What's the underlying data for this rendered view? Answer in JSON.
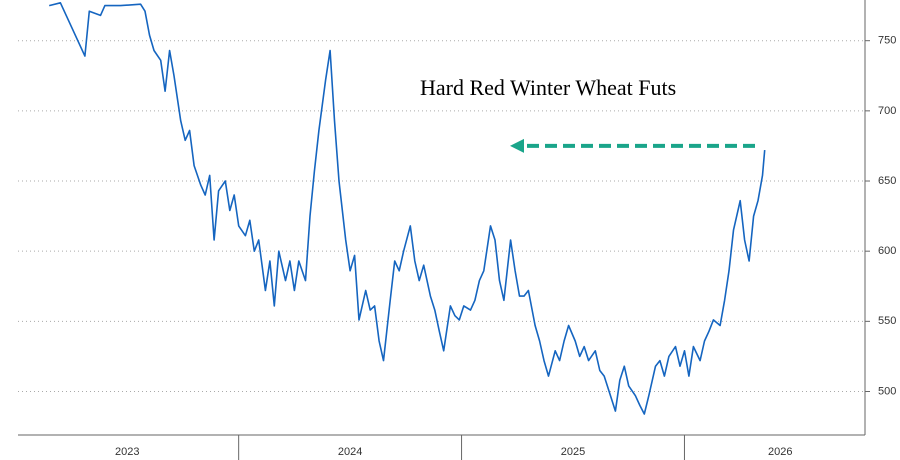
{
  "chart_data": {
    "type": "line",
    "annotation": "Hard Red Winter Wheat Futs",
    "arrow_level": 675,
    "arrow_color": "#1aa58a",
    "xlim": [
      2023.01,
      2026.81
    ],
    "ylim": [
      469,
      779
    ],
    "yticks": [
      500,
      550,
      600,
      650,
      700,
      750
    ],
    "xticks": [
      {
        "value": 2023.5,
        "label": "2023"
      },
      {
        "value": 2024.5,
        "label": "2024"
      },
      {
        "value": 2025.5,
        "label": "2025"
      },
      {
        "value": 2026.43,
        "label": "2026"
      }
    ],
    "year_boundaries": [
      2024,
      2025,
      2026
    ],
    "grid": true,
    "series": [
      {
        "color": "#1565c0",
        "x": [
          2023.15,
          2023.2,
          2023.31,
          2023.33,
          2023.38,
          2023.4,
          2023.47,
          2023.56,
          2023.58,
          2023.6,
          2023.62,
          2023.65,
          2023.67,
          2023.69,
          2023.71,
          2023.74,
          2023.76,
          2023.78,
          2023.8,
          2023.83,
          2023.85,
          2023.87,
          2023.89,
          2023.91,
          2023.94,
          2023.96,
          2023.98,
          2024.0,
          2024.03,
          2024.05,
          2024.07,
          2024.09,
          2024.12,
          2024.14,
          2024.16,
          2024.18,
          2024.21,
          2024.23,
          2024.25,
          2024.27,
          2024.3,
          2024.32,
          2024.34,
          2024.36,
          2024.39,
          2024.41,
          2024.43,
          2024.45,
          2024.48,
          2024.5,
          2024.52,
          2024.54,
          2024.57,
          2024.59,
          2024.61,
          2024.63,
          2024.65,
          2024.68,
          2024.7,
          2024.72,
          2024.74,
          2024.77,
          2024.79,
          2024.81,
          2024.83,
          2024.86,
          2024.88,
          2024.9,
          2024.92,
          2024.95,
          2024.97,
          2024.99,
          2025.01,
          2025.04,
          2025.06,
          2025.08,
          2025.1,
          2025.13,
          2025.15,
          2025.17,
          2025.19,
          2025.22,
          2025.24,
          2025.26,
          2025.28,
          2025.3,
          2025.33,
          2025.35,
          2025.37,
          2025.39,
          2025.42,
          2025.44,
          2025.46,
          2025.48,
          2025.51,
          2025.53,
          2025.55,
          2025.57,
          2025.6,
          2025.62,
          2025.64,
          2025.66,
          2025.69,
          2025.71,
          2025.73,
          2025.75,
          2025.78,
          2025.8,
          2025.82,
          2025.84,
          2025.87,
          2025.89,
          2025.91,
          2025.93,
          2025.96,
          2025.98,
          2026.0,
          2026.02,
          2026.04,
          2026.07,
          2026.09,
          2026.11,
          2026.13,
          2026.16,
          2026.18,
          2026.2,
          2026.22,
          2026.25,
          2026.27,
          2026.29,
          2026.31,
          2026.33,
          2026.35,
          2026.36
        ],
        "values": [
          775,
          777,
          739,
          771,
          768,
          775,
          775,
          776,
          771,
          754,
          743,
          736,
          714,
          743,
          725,
          693,
          679,
          686,
          661,
          647,
          640,
          654,
          608,
          643,
          650,
          629,
          640,
          618,
          611,
          622,
          600,
          608,
          572,
          593,
          561,
          600,
          579,
          593,
          572,
          593,
          579,
          625,
          657,
          686,
          722,
          743,
          693,
          650,
          608,
          586,
          597,
          551,
          572,
          558,
          561,
          536,
          522,
          565,
          593,
          586,
          600,
          618,
          593,
          579,
          590,
          568,
          558,
          543,
          529,
          561,
          554,
          551,
          561,
          558,
          565,
          579,
          586,
          618,
          608,
          579,
          565,
          608,
          586,
          568,
          568,
          572,
          547,
          536,
          522,
          511,
          529,
          522,
          536,
          547,
          536,
          525,
          532,
          522,
          529,
          515,
          511,
          501,
          486,
          508,
          518,
          504,
          497,
          490,
          484,
          497,
          518,
          522,
          511,
          525,
          532,
          518,
          529,
          511,
          532,
          522,
          536,
          543,
          551,
          547,
          565,
          586,
          615,
          636,
          608,
          593,
          625,
          636,
          654,
          672
        ]
      }
    ]
  }
}
